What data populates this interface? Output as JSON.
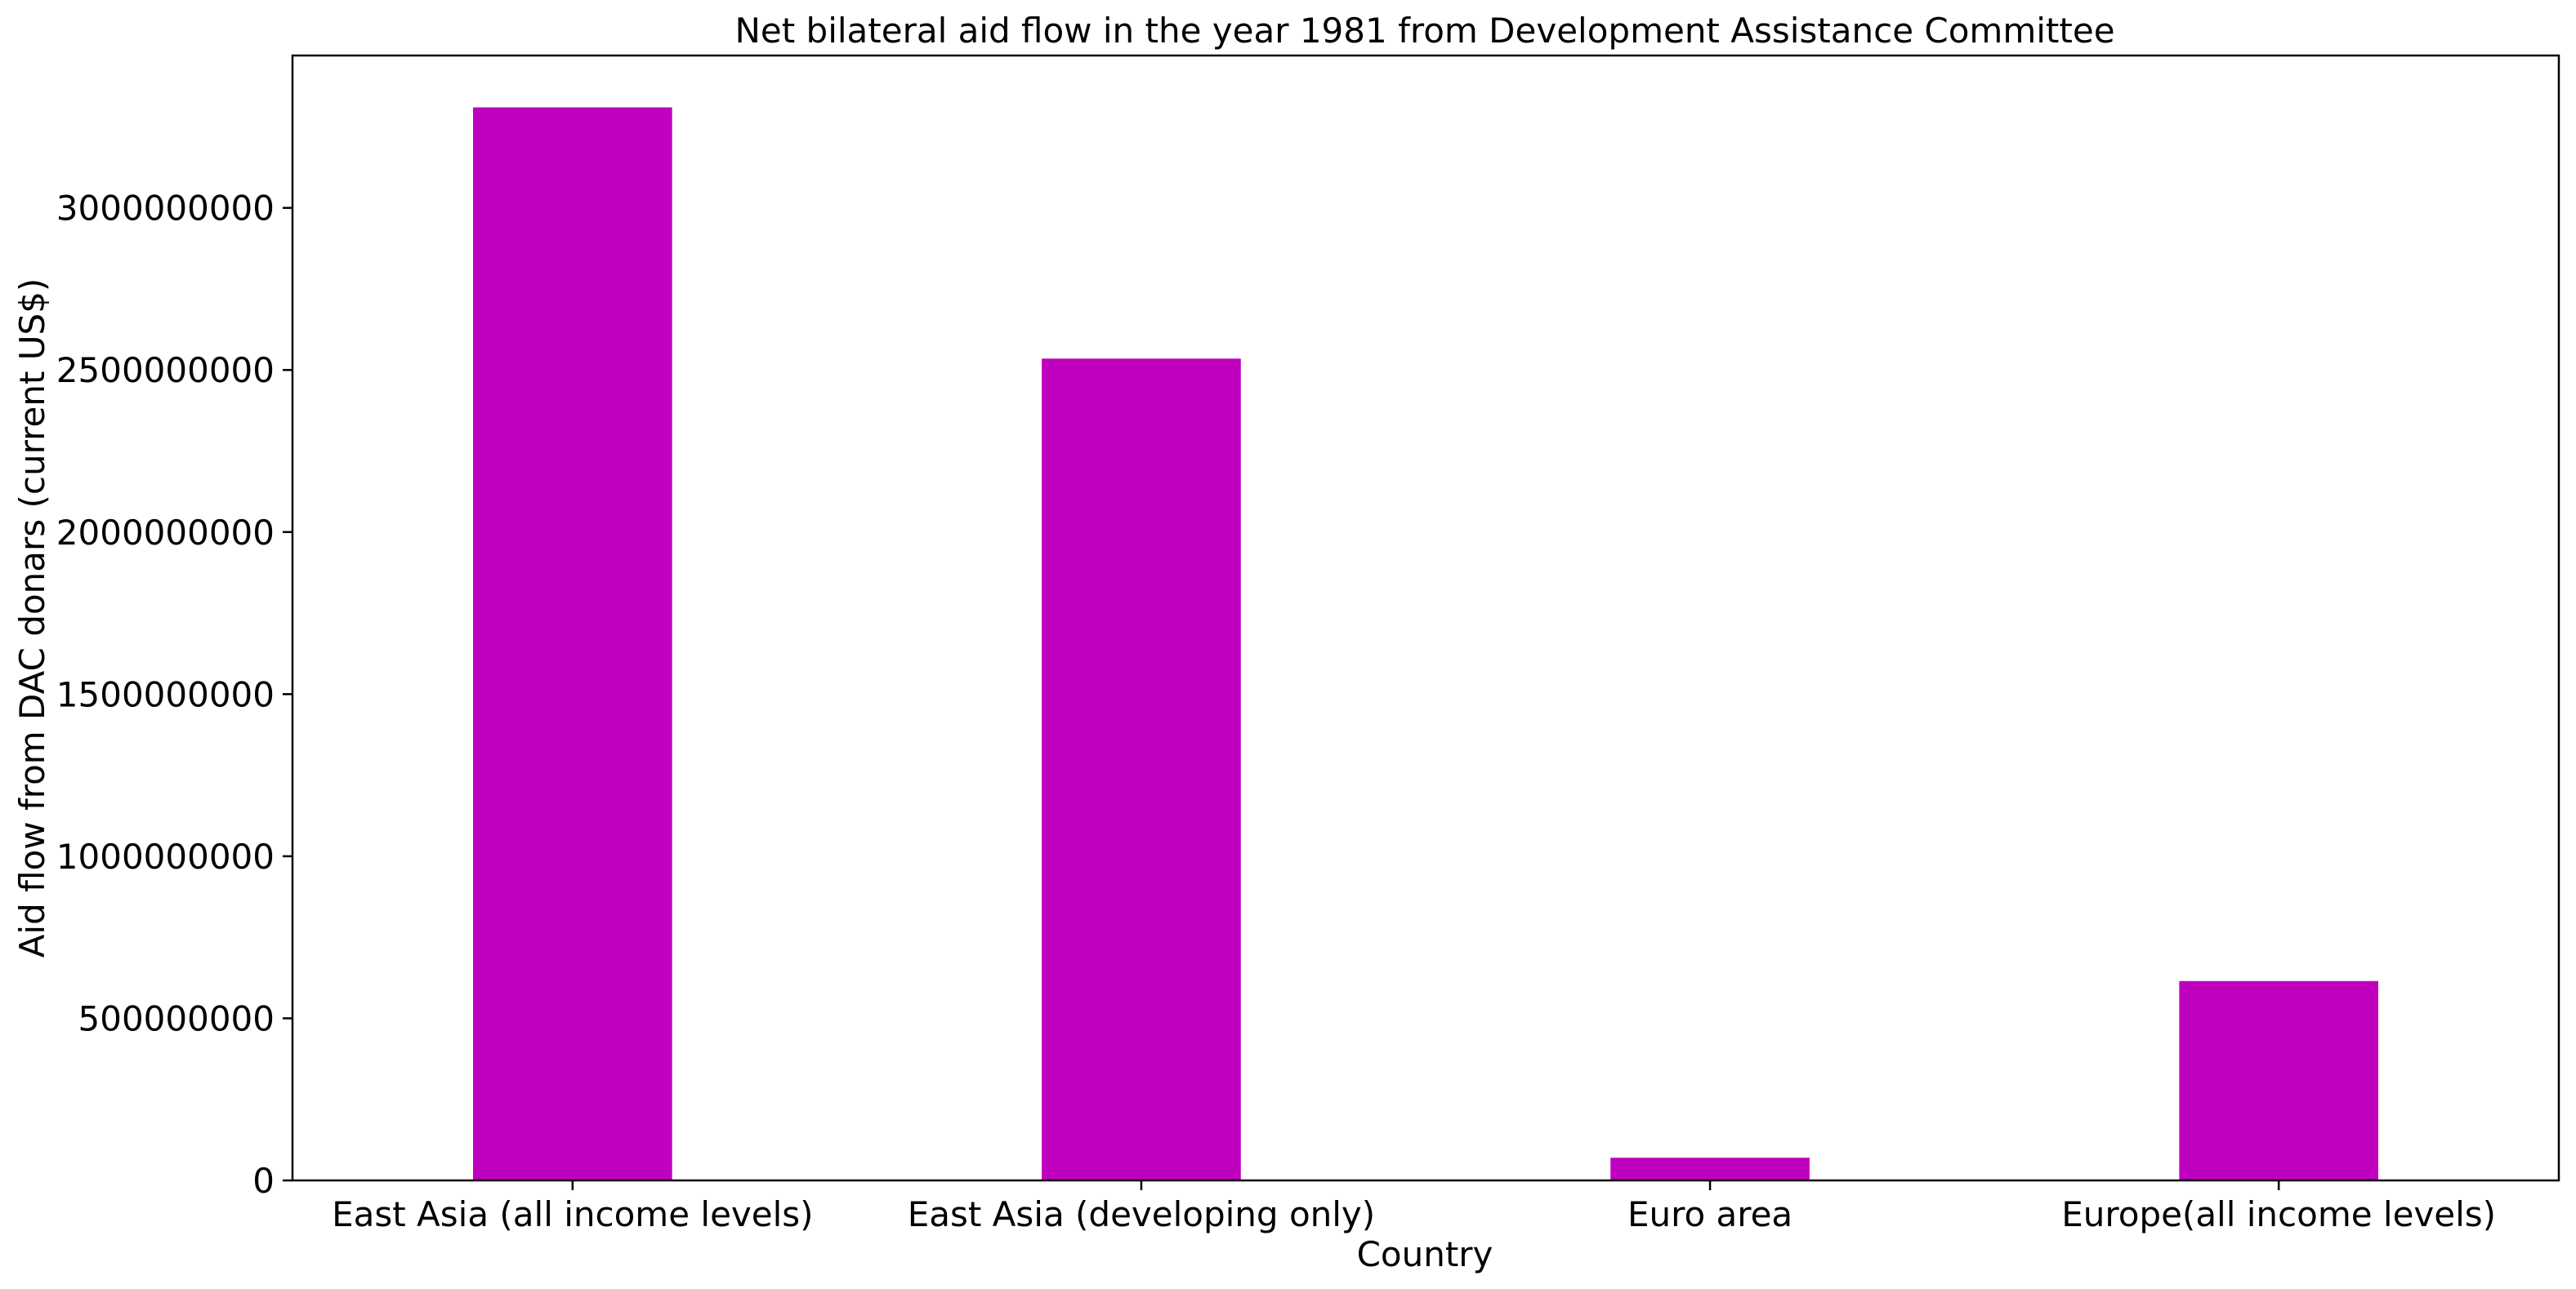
{
  "chart_data": {
    "type": "bar",
    "title": "Net bilateral aid flow in the year 1981 from Development Assistance Committee",
    "xlabel": "Country",
    "ylabel": "Aid flow from DAC donars (current US$)",
    "categories": [
      "East Asia (all income levels)",
      "East Asia (developing only)",
      "Euro area",
      "Europe(all income levels)"
    ],
    "values": [
      3310000000,
      2535000000,
      70000000,
      615000000
    ],
    "ylim": [
      0,
      3470000000
    ],
    "yticks": [
      0,
      500000000,
      1000000000,
      1500000000,
      2000000000,
      2500000000,
      3000000000
    ],
    "ytick_labels": [
      "0",
      "500000000",
      "1000000000",
      "1500000000",
      "2000000000",
      "2500000000",
      "3000000000"
    ],
    "bar_color": "#bf00bf",
    "grid": false,
    "legend": "none"
  }
}
